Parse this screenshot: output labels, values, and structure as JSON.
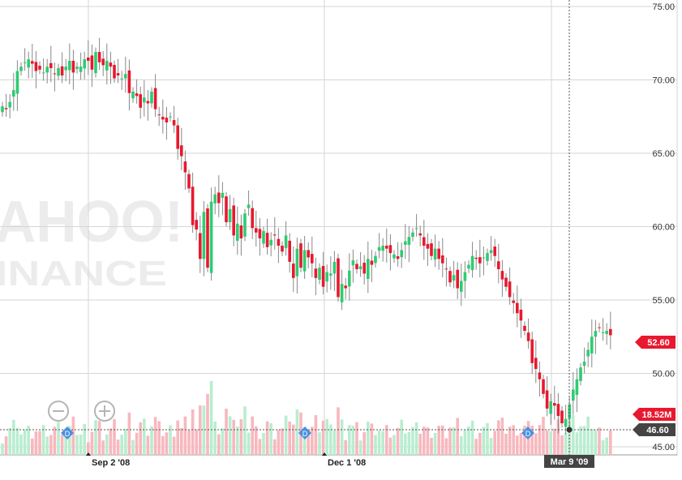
{
  "watermark": {
    "line1": "AHOO!",
    "line2": "INANCE"
  },
  "tags": {
    "last_price": "52.60",
    "volume": "18.52M",
    "crosshair_price": "46.60",
    "crosshair_date": "Mar 9 '09"
  },
  "colors": {
    "up": "#2ecc71",
    "down": "#e8182f",
    "vol_up": "#b9edcf",
    "vol_down": "#f7b8be",
    "grid": "#d6d6d6",
    "dividend": "#4a90e2",
    "tag_red": "#e8182f",
    "tag_dark": "#444444"
  },
  "icons": {
    "zoom_out": "minus-circle-icon",
    "zoom_in": "plus-circle-icon",
    "dividend": "dividend-diamond-icon"
  },
  "dividend_label": "D",
  "chart_data": {
    "type": "candlestick",
    "title": "",
    "xlabel": "",
    "ylabel": "",
    "ylim": [
      45,
      75
    ],
    "y_ticks": [
      "75.00",
      "70.00",
      "65.00",
      "60.00",
      "55.00",
      "50.00",
      "45.00"
    ],
    "x_ticks": [
      "Sep 2 '08",
      "Dec 1 '08",
      "Mar 9 '09"
    ],
    "grid": true,
    "last_close": 52.6,
    "volume_last": "18.52M",
    "crosshair": {
      "date": "Mar 9 '09",
      "price": 46.6
    },
    "dividends": [
      "D",
      "D",
      "D"
    ],
    "closes": [
      68.2,
      68.0,
      68.5,
      69.3,
      70.6,
      70.9,
      71.2,
      71.4,
      71.1,
      70.6,
      70.7,
      70.5,
      70.9,
      70.8,
      70.4,
      70.8,
      70.3,
      70.9,
      71.3,
      70.5,
      70.9,
      70.9,
      71.4,
      71.3,
      70.7,
      71.9,
      71.2,
      71.0,
      71.3,
      70.9,
      70.1,
      70.3,
      70.1,
      70.4,
      69.1,
      69.2,
      68.9,
      68.1,
      68.8,
      68.4,
      69.2,
      68.0,
      67.6,
      67.3,
      67.1,
      67.5,
      66.9,
      65.3,
      64.8,
      63.7,
      62.6,
      60.1,
      59.8,
      57.8,
      61.0,
      57.2,
      61.7,
      62.2,
      61.6,
      62.3,
      60.3,
      61.2,
      59.4,
      60.2,
      59.2,
      60.9,
      61.5,
      59.9,
      59.6,
      59.2,
      59.7,
      58.6,
      59.1,
      59.4,
      58.7,
      58.3,
      59.4,
      57.6,
      56.5,
      58.5,
      57.2,
      58.4,
      57.9,
      57.5,
      56.5,
      57.2,
      55.9,
      56.9,
      56.8,
      57.6,
      55.2,
      56.1,
      55.8,
      57.0,
      57.7,
      57.1,
      57.3,
      56.8,
      57.8,
      57.4,
      58.0,
      58.6,
      58.7,
      58.5,
      58.2,
      58.1,
      57.8,
      58.4,
      59.0,
      59.3,
      59.6,
      59.9,
      59.4,
      58.7,
      58.5,
      58.0,
      58.5,
      57.8,
      57.5,
      57.1,
      56.2,
      56.7,
      55.8,
      56.3,
      56.9,
      57.4,
      58.0,
      57.8,
      57.5,
      57.9,
      58.2,
      58.4,
      58.0,
      57.1,
      56.4,
      55.9,
      55.2,
      54.8,
      54.1,
      53.6,
      52.9,
      52.2,
      50.7,
      50.3,
      49.6,
      48.6,
      47.6,
      48.1,
      47.8,
      47.1,
      46.6,
      46.9,
      47.9,
      48.9,
      49.6,
      50.4,
      50.8,
      51.6,
      52.5,
      52.9,
      53.1,
      52.8,
      52.9,
      52.6
    ]
  }
}
